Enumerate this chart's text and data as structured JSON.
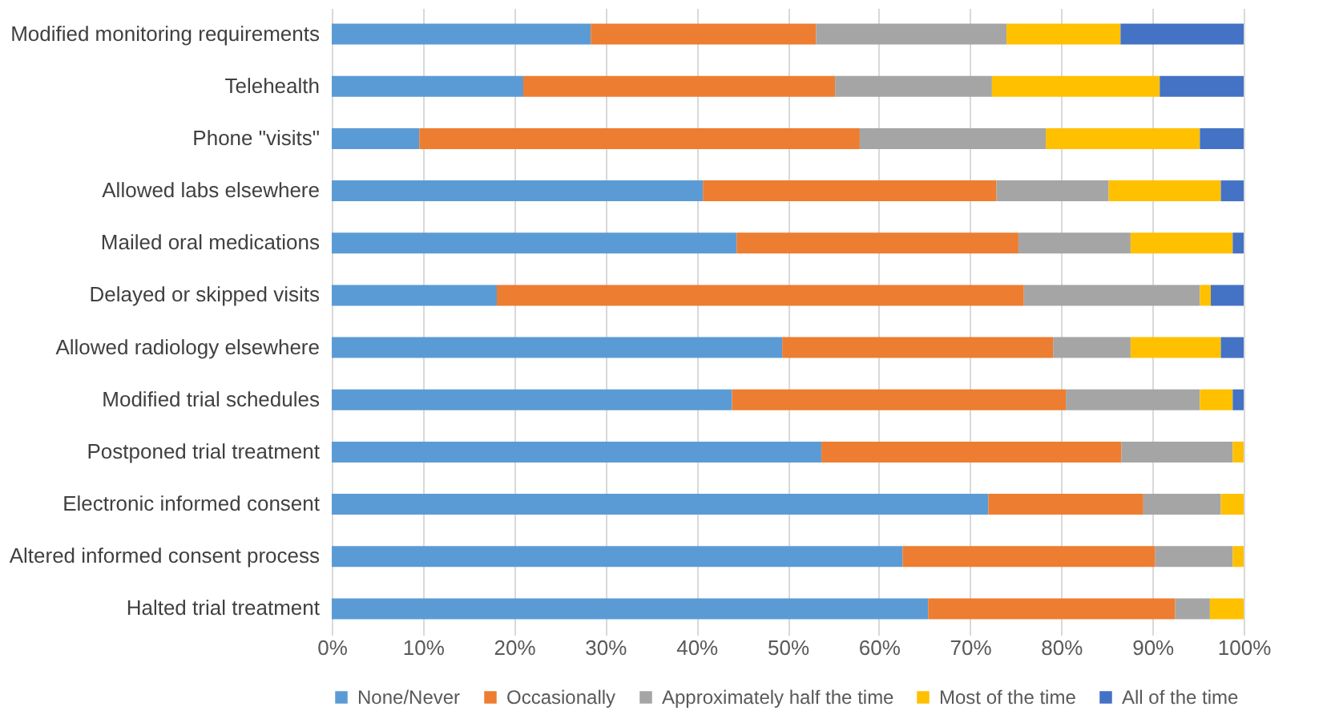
{
  "chart_data": {
    "type": "bar",
    "orientation": "horizontal",
    "stacked": true,
    "categories": [
      "Modified monitoring requirements",
      "Telehealth",
      "Phone \"visits\"",
      "Allowed labs elsewhere",
      "Mailed oral medications",
      "Delayed or skipped visits",
      "Allowed radiology elsewhere",
      "Modified trial schedules",
      "Postponed trial treatment",
      "Electronic informed consent",
      "Altered informed consent process",
      "Halted trial treatment"
    ],
    "series": [
      {
        "name": "None/Never",
        "color": "#5b9bd5",
        "values": [
          28.4,
          21.0,
          9.6,
          40.7,
          44.4,
          18.1,
          49.4,
          43.9,
          53.7,
          72.0,
          62.6,
          65.4
        ]
      },
      {
        "name": "Occasionally",
        "color": "#ed7d31",
        "values": [
          24.7,
          34.2,
          48.3,
          32.2,
          30.9,
          57.8,
          29.7,
          36.6,
          32.9,
          17.0,
          27.7,
          27.1
        ]
      },
      {
        "name": "Approximately half the time",
        "color": "#a5a5a5",
        "values": [
          20.9,
          17.2,
          20.4,
          12.3,
          12.3,
          19.3,
          8.5,
          14.7,
          12.2,
          8.5,
          8.5,
          3.8
        ]
      },
      {
        "name": "Most of the time",
        "color": "#ffc000",
        "values": [
          12.5,
          18.4,
          16.9,
          12.3,
          11.2,
          1.2,
          9.9,
          3.6,
          1.2,
          2.5,
          1.2,
          3.7
        ]
      },
      {
        "name": "All of the time",
        "color": "#4472c4",
        "values": [
          13.5,
          9.2,
          4.8,
          2.5,
          1.2,
          3.6,
          2.5,
          1.2,
          0,
          0,
          0,
          0
        ]
      }
    ],
    "xlim": [
      0,
      100
    ],
    "xticks": [
      {
        "value": 0,
        "label": "0%"
      },
      {
        "value": 10,
        "label": "10%"
      },
      {
        "value": 20,
        "label": "20%"
      },
      {
        "value": 30,
        "label": "30%"
      },
      {
        "value": 40,
        "label": "40%"
      },
      {
        "value": 50,
        "label": "50%"
      },
      {
        "value": 60,
        "label": "60%"
      },
      {
        "value": 70,
        "label": "70%"
      },
      {
        "value": 80,
        "label": "80%"
      },
      {
        "value": 90,
        "label": "90%"
      },
      {
        "value": 100,
        "label": "100%"
      }
    ],
    "grid": "x",
    "legend": "bottom"
  }
}
